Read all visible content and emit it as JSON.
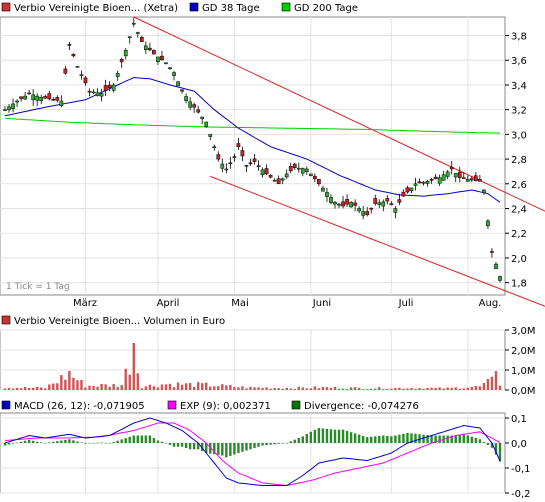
{
  "chart_data": [
    {
      "type": "candlestick",
      "legend": [
        {
          "label": "Verbio Vereinigte Bioen... (Xetra)",
          "color": "#cc3333"
        },
        {
          "label": "GD 38 Tage",
          "color": "#0000cc"
        },
        {
          "label": "GD 200 Tage",
          "color": "#00cc00"
        }
      ],
      "note": "1 Tick = 1 Tag",
      "x_tick_labels": [
        "März",
        "April",
        "Mai",
        "Juni",
        "Juli",
        "Aug."
      ],
      "y_tick_labels": [
        "3,8",
        "3,6",
        "3,4",
        "3,2",
        "3,0",
        "2,8",
        "2,6",
        "2,4",
        "2,2",
        "2,0",
        "1,8"
      ],
      "ylim": [
        1.7,
        3.95
      ],
      "n_days": 124,
      "channel_color": "#dd2222",
      "price_anchors": [
        [
          0,
          3.2
        ],
        [
          3,
          3.27
        ],
        [
          6,
          3.33
        ],
        [
          9,
          3.3
        ],
        [
          12,
          3.28
        ],
        [
          14,
          3.27
        ],
        [
          16,
          3.72
        ],
        [
          18,
          3.55
        ],
        [
          21,
          3.35
        ],
        [
          24,
          3.33
        ],
        [
          27,
          3.4
        ],
        [
          30,
          3.68
        ],
        [
          32,
          3.9
        ],
        [
          34,
          3.75
        ],
        [
          37,
          3.65
        ],
        [
          40,
          3.58
        ],
        [
          42,
          3.5
        ],
        [
          44,
          3.35
        ],
        [
          47,
          3.22
        ],
        [
          50,
          3.1
        ],
        [
          51,
          3.0
        ],
        [
          53,
          2.8
        ],
        [
          55,
          2.72
        ],
        [
          57,
          2.82
        ],
        [
          58,
          2.9
        ],
        [
          60,
          2.75
        ],
        [
          62,
          2.78
        ],
        [
          65,
          2.68
        ],
        [
          68,
          2.6
        ],
        [
          70,
          2.68
        ],
        [
          72,
          2.73
        ],
        [
          75,
          2.72
        ],
        [
          78,
          2.6
        ],
        [
          80,
          2.53
        ],
        [
          82,
          2.45
        ],
        [
          84,
          2.42
        ],
        [
          86,
          2.45
        ],
        [
          88,
          2.4
        ],
        [
          90,
          2.35
        ],
        [
          92,
          2.44
        ],
        [
          95,
          2.46
        ],
        [
          97,
          2.4
        ],
        [
          99,
          2.5
        ],
        [
          102,
          2.6
        ],
        [
          105,
          2.62
        ],
        [
          108,
          2.65
        ],
        [
          111,
          2.72
        ],
        [
          113,
          2.65
        ],
        [
          116,
          2.63
        ],
        [
          118,
          2.62
        ],
        [
          119,
          2.55
        ],
        [
          120,
          2.3
        ],
        [
          121,
          2.05
        ],
        [
          122,
          1.95
        ],
        [
          123,
          1.85
        ]
      ],
      "gd38_anchors": [
        [
          0,
          3.15
        ],
        [
          10,
          3.22
        ],
        [
          20,
          3.28
        ],
        [
          28,
          3.4
        ],
        [
          32,
          3.46
        ],
        [
          36,
          3.45
        ],
        [
          41,
          3.4
        ],
        [
          47,
          3.35
        ],
        [
          52,
          3.2
        ],
        [
          58,
          3.05
        ],
        [
          66,
          2.9
        ],
        [
          75,
          2.8
        ],
        [
          83,
          2.67
        ],
        [
          92,
          2.55
        ],
        [
          98,
          2.51
        ],
        [
          104,
          2.5
        ],
        [
          110,
          2.52
        ],
        [
          116,
          2.55
        ],
        [
          120,
          2.52
        ],
        [
          123,
          2.45
        ]
      ],
      "gd200_anchors": [
        [
          0,
          3.13
        ],
        [
          15,
          3.1
        ],
        [
          30,
          3.08
        ],
        [
          50,
          3.06
        ],
        [
          70,
          3.05
        ],
        [
          90,
          3.04
        ],
        [
          110,
          3.02
        ],
        [
          123,
          3.01
        ]
      ],
      "channel_upper": [
        [
          32,
          3.95
        ],
        [
          123,
          2.55
        ]
      ],
      "channel_lower": [
        [
          51,
          2.66
        ],
        [
          123,
          1.75
        ]
      ]
    },
    {
      "type": "bar",
      "legend": [
        {
          "label": "Verbio Vereinigte Bioen... Volumen in Euro",
          "color": "#cc3333"
        }
      ],
      "y_tick_labels": [
        "3,0M",
        "2,0M",
        "1,0M",
        "0,0M"
      ],
      "ylim": [
        0,
        3.0
      ],
      "unit": "M EUR",
      "volume_anchors": [
        [
          0,
          0.15
        ],
        [
          10,
          0.12
        ],
        [
          16,
          0.95
        ],
        [
          20,
          0.25
        ],
        [
          29,
          0.3
        ],
        [
          32,
          2.35
        ],
        [
          34,
          0.2
        ],
        [
          40,
          0.35
        ],
        [
          50,
          0.3
        ],
        [
          60,
          0.15
        ],
        [
          70,
          0.12
        ],
        [
          80,
          0.15
        ],
        [
          90,
          0.1
        ],
        [
          100,
          0.12
        ],
        [
          110,
          0.1
        ],
        [
          118,
          0.2
        ],
        [
          121,
          0.55
        ],
        [
          122,
          0.95
        ],
        [
          123,
          0.4
        ]
      ]
    },
    {
      "type": "line+bar",
      "legend": [
        {
          "label": "MACD (26, 12): -0,071905",
          "color": "#0000cc"
        },
        {
          "label": "EXP (9): 0,002371",
          "color": "#ff00ff"
        },
        {
          "label": "Divergence: -0,074276",
          "color": "#007700"
        }
      ],
      "y_tick_labels": [
        "0,1",
        "0,0",
        "-0,1",
        "-0,2"
      ],
      "ylim": [
        -0.2,
        0.12
      ],
      "macd_anchors": [
        [
          0,
          0.0
        ],
        [
          6,
          0.03
        ],
        [
          10,
          0.02
        ],
        [
          16,
          0.035
        ],
        [
          20,
          0.02
        ],
        [
          26,
          0.03
        ],
        [
          32,
          0.08
        ],
        [
          36,
          0.1
        ],
        [
          40,
          0.08
        ],
        [
          44,
          0.05
        ],
        [
          48,
          0.0
        ],
        [
          52,
          -0.08
        ],
        [
          55,
          -0.14
        ],
        [
          58,
          -0.16
        ],
        [
          64,
          -0.17
        ],
        [
          70,
          -0.17
        ],
        [
          74,
          -0.13
        ],
        [
          78,
          -0.08
        ],
        [
          84,
          -0.06
        ],
        [
          90,
          -0.07
        ],
        [
          96,
          -0.04
        ],
        [
          100,
          0.0
        ],
        [
          106,
          0.03
        ],
        [
          110,
          0.05
        ],
        [
          114,
          0.07
        ],
        [
          118,
          0.06
        ],
        [
          121,
          0.0
        ],
        [
          123,
          -0.072
        ]
      ],
      "exp_anchors": [
        [
          0,
          0.01
        ],
        [
          8,
          0.02
        ],
        [
          16,
          0.02
        ],
        [
          24,
          0.025
        ],
        [
          32,
          0.05
        ],
        [
          38,
          0.08
        ],
        [
          42,
          0.08
        ],
        [
          46,
          0.05
        ],
        [
          50,
          0.0
        ],
        [
          54,
          -0.07
        ],
        [
          58,
          -0.12
        ],
        [
          64,
          -0.16
        ],
        [
          70,
          -0.17
        ],
        [
          76,
          -0.15
        ],
        [
          82,
          -0.12
        ],
        [
          88,
          -0.1
        ],
        [
          94,
          -0.08
        ],
        [
          100,
          -0.04
        ],
        [
          106,
          0.0
        ],
        [
          112,
          0.03
        ],
        [
          118,
          0.045
        ],
        [
          123,
          0.002
        ]
      ]
    }
  ]
}
